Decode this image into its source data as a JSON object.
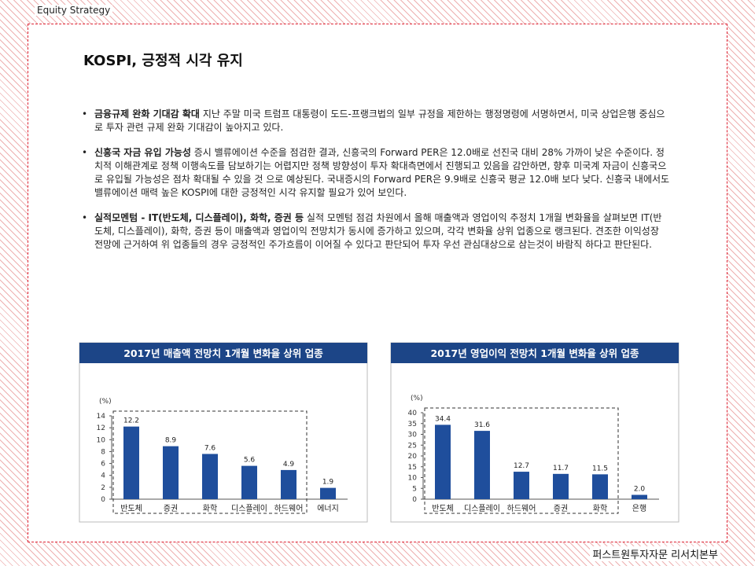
{
  "header": {
    "section": "Equity Strategy"
  },
  "title": "KOSPI, 긍정적 시각 유지",
  "bullets": [
    {
      "lead": "금융규제 완화 기대감 확대",
      "text": "지난 주말 미국 트럼프 대통령이 도드-프랭크법의 일부 규정을 제한하는 행정명령에 서명하면서, 미국 상업은행 중심으로 투자 관련 규제 완화 기대감이 높아지고 있다."
    },
    {
      "lead": "신흥국 자금 유입 가능성",
      "text": "증시 밸류에이션 수준을 점검한 결과, 신흥국의 Forward PER은 12.0배로 선진국 대비 28% 가까이 낮은 수준이다. 정치적 이해관계로 정책 이행속도를 담보하기는 어렵지만 정책 방향성이 투자 확대측면에서 진행되고 있음을 감안하면, 향후 미국계 자금이 신흥국으로 유입될 가능성은 점차 확대될 수 있을 것 으로 예상된다. 국내증시의 Forward PER은 9.9배로 신흥국 평균 12.0배 보다 낮다. 신흥국 내에서도 밸류에이션 매력 높은 KOSPI에 대한 긍정적인 시각 유지할 필요가 있어 보인다."
    },
    {
      "lead": "실적모멘텀 - IT(반도체, 디스플레이), 화학, 증권 등",
      "text": "실적 모멘텀 점검 차원에서 올해 매출액과 영업이익 추정치 1개월 변화율을 살펴보면 IT(반도체, 디스플레이), 화학, 증권 등이 매출액과 영업이익 전망치가 동시에 증가하고 있으며, 각각 변화율 상위 업종으로 랭크된다. 견조한 이익성장 전망에 근거하여 위 업종들의 경우 긍정적인 주가흐름이 이어질 수 있다고 판단되어 투자 우선 관심대상으로 삼는것이 바람직 하다고 판단된다."
    }
  ],
  "chart_data": [
    {
      "type": "bar",
      "title": "2017년 매출액 전망치 1개월 변화율 상위 업종",
      "y_label": "(%)",
      "categories": [
        "반도체",
        "증권",
        "화학",
        "디스플레이",
        "하드웨어",
        "에너지"
      ],
      "values": [
        12.2,
        8.9,
        7.6,
        5.6,
        4.9,
        1.9
      ],
      "color": "#1f4e9c",
      "ylim": [
        0,
        14
      ],
      "yticks": [
        0,
        2,
        4,
        6,
        8,
        10,
        12,
        14
      ]
    },
    {
      "type": "bar",
      "title": "2017년 영업이익 전망치 1개월 변화율 상위 업종",
      "y_label": "(%)",
      "categories": [
        "반도체",
        "디스플레이",
        "하드웨어",
        "증권",
        "화학",
        "은행"
      ],
      "values": [
        34.4,
        31.6,
        12.7,
        11.7,
        11.5,
        2.0
      ],
      "value_labels": [
        "34.4",
        "31.6",
        "12.7",
        "11.7",
        "11.5",
        "2.0"
      ],
      "color": "#1f4e9c",
      "ylim": [
        0,
        40
      ],
      "yticks": [
        0,
        5,
        10,
        15,
        20,
        25,
        30,
        35,
        40
      ]
    }
  ],
  "footer": "퍼스트원투자자문 리서치본부"
}
